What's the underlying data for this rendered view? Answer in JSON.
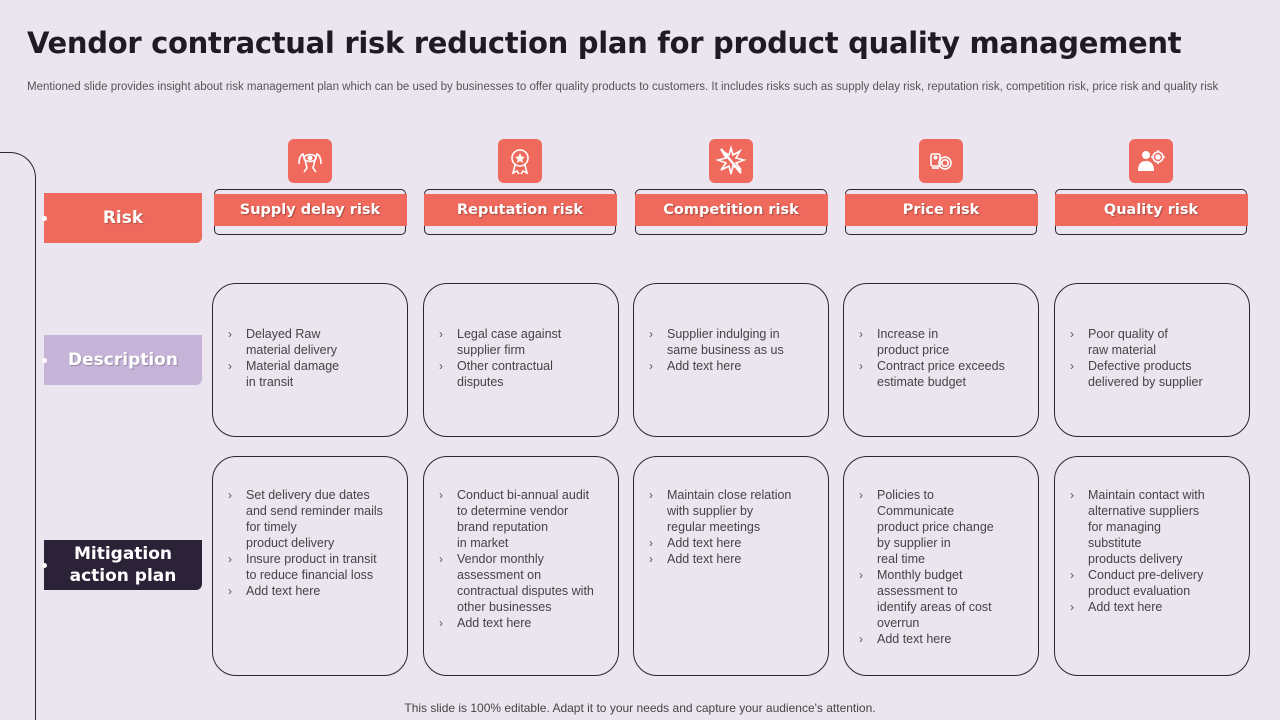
{
  "title": "Vendor contractual risk reduction plan for product quality management",
  "subtitle": "Mentioned slide provides insight about risk management plan which can be used by businesses to offer quality products to customers. It includes risks such as supply delay risk, reputation risk, competition risk, price risk and quality risk",
  "row_labels": {
    "risk": "Risk",
    "description": "Description",
    "mitigation": "Mitigation\naction plan"
  },
  "colors": {
    "accent": "#ef6a5d",
    "description_label": "#c6b4d8",
    "mitigation_label": "#2b2238",
    "background": "#ebe5ef"
  },
  "columns": [
    {
      "icon": "hands-eye-icon",
      "risk": "Supply delay risk",
      "description": [
        "Delayed Raw\nmaterial delivery",
        "Material damage\nin transit"
      ],
      "mitigation": [
        "Set delivery  due dates\nand send reminder mails\nfor timely\nproduct delivery",
        "Insure product in transit\nto reduce financial loss",
        "Add text here"
      ]
    },
    {
      "icon": "award-badge-icon",
      "risk": "Reputation risk",
      "description": [
        "Legal case against\nsupplier firm",
        "Other contractual\ndisputes"
      ],
      "mitigation": [
        "Conduct bi-annual audit\nto determine vendor\nbrand reputation\nin market",
        "Vendor monthly\nassessment on\ncontractual disputes with\nother businesses",
        "Add text here"
      ]
    },
    {
      "icon": "competition-burst-icon",
      "risk": "Competition risk",
      "description": [
        "Supplier indulging  in\nsame business as us",
        "Add text here"
      ],
      "mitigation": [
        "Maintain close relation\nwith supplier by\nregular meetings",
        "Add text here",
        "Add text here"
      ]
    },
    {
      "icon": "price-coins-icon",
      "risk": "Price risk",
      "description": [
        "Increase in\nproduct price",
        "Contract price exceeds\nestimate budget"
      ],
      "mitigation": [
        "Policies to\nCommunicate\nproduct price change\nby supplier in\nreal time",
        "Monthly budget\nassessment to\nidentify areas of cost\noverrun",
        "Add text here"
      ]
    },
    {
      "icon": "quality-person-gear-icon",
      "risk": "Quality risk",
      "description": [
        "Poor quality of\nraw material",
        "Defective  products\ndelivered  by supplier"
      ],
      "mitigation": [
        "Maintain contact with\nalternative  suppliers\nfor managing\nsubstitute\nproducts delivery",
        "Conduct pre-delivery\nproduct evaluation",
        "Add text here"
      ]
    }
  ],
  "footer": "This slide is 100% editable. Adapt it to your needs and capture your audience's attention."
}
